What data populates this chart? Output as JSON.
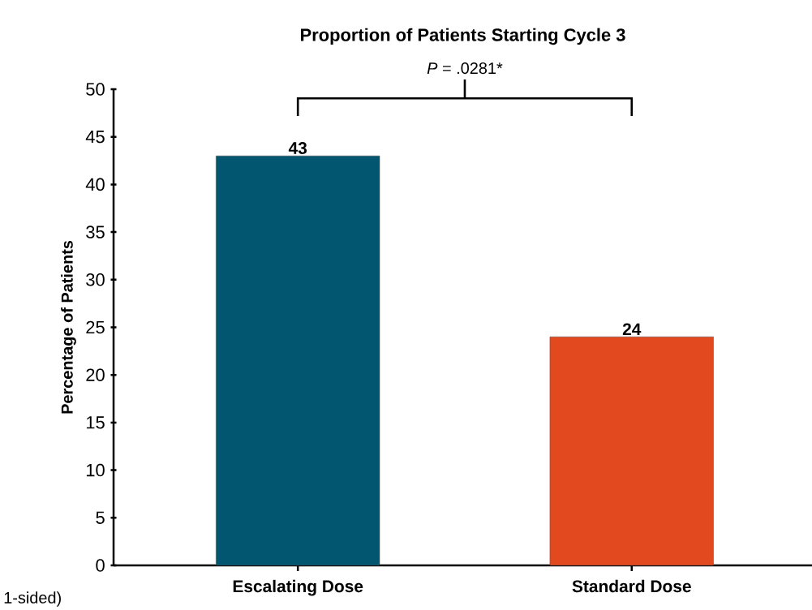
{
  "chart_data": {
    "type": "bar",
    "title": "Proportion of Patients Starting Cycle 3",
    "ylabel": "Percentage of Patients",
    "categories": [
      "Escalating Dose",
      "Standard Dose"
    ],
    "values": [
      43,
      24
    ],
    "colors": [
      "#035670",
      "#e2491f"
    ],
    "ylim": [
      0,
      50
    ],
    "yticks": [
      0,
      5,
      10,
      15,
      20,
      25,
      30,
      35,
      40,
      45,
      50
    ],
    "grid": false,
    "data_labels": true,
    "annotations": [
      "*P* = .0281*",
      "1-sided)"
    ]
  }
}
